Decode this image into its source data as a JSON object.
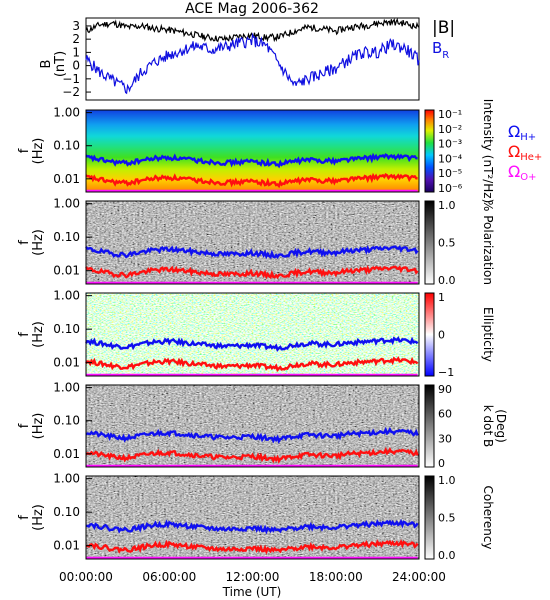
{
  "title": "ACE Mag 2006-362",
  "colors": {
    "B_total": "#000000",
    "B_R": "#1010e0",
    "H_plus": "#1010f0",
    "He_plus": "#ff1010",
    "O_plus": "#ff10ff"
  },
  "chart_data": [
    {
      "type": "line",
      "panel": "magnetic-field",
      "ylabel": [
        "B",
        "(nT)"
      ],
      "ylim": [
        -2.6,
        3.6
      ],
      "yticks": [
        -2,
        -1,
        0,
        1,
        2,
        3
      ],
      "ytick_labels": [
        "−2",
        "−1",
        "0",
        "1",
        "2",
        "3"
      ],
      "xlim_hours": [
        0,
        24
      ],
      "legend": [
        "|B|",
        "B_R"
      ],
      "series": [
        {
          "name": "|B|",
          "x_hours": [
            0,
            1,
            2,
            3,
            4,
            5,
            6,
            7,
            8,
            9,
            10,
            11,
            12,
            13,
            14,
            15,
            16,
            17,
            18,
            19,
            20,
            21,
            22,
            23,
            24
          ],
          "values": [
            2.6,
            3.1,
            3.2,
            2.9,
            3.0,
            2.8,
            2.7,
            2.5,
            2.3,
            2.1,
            2.0,
            2.2,
            2.3,
            2.1,
            2.2,
            2.6,
            2.9,
            2.8,
            2.6,
            2.9,
            3.0,
            3.2,
            3.3,
            3.2,
            2.9
          ]
        },
        {
          "name": "B_R",
          "x_hours": [
            0,
            1,
            2,
            3,
            4,
            5,
            6,
            7,
            8,
            9,
            10,
            11,
            12,
            13,
            14,
            15,
            16,
            17,
            18,
            19,
            20,
            21,
            22,
            23,
            24
          ],
          "values": [
            0.5,
            -0.5,
            -1.2,
            -1.8,
            -0.5,
            0.3,
            0.8,
            1.2,
            1.5,
            1.2,
            1.4,
            1.7,
            1.9,
            1.5,
            0.0,
            -1.5,
            -1.0,
            -0.6,
            -0.2,
            0.5,
            1.0,
            1.0,
            1.6,
            1.3,
            0.4
          ]
        }
      ]
    },
    {
      "type": "heatmap",
      "panel": "intensity",
      "ylabel": [
        "f",
        "(Hz)"
      ],
      "ylim_hz": [
        0.004,
        1.2
      ],
      "yscale": "log",
      "ytick_labels": [
        "1.00",
        "0.10",
        "0.01"
      ],
      "colorbar_label": "Intensity (nT²/Hz)",
      "colorbar_ticks": [
        "10⁻¹",
        "10⁻²",
        "10⁻³",
        "10⁻⁴",
        "10⁻⁵",
        "10⁻⁶"
      ],
      "colormap": "rainbow"
    },
    {
      "type": "heatmap",
      "panel": "polarization",
      "ylabel": [
        "f",
        "(Hz)"
      ],
      "ytick_labels": [
        "1.00",
        "0.10",
        "0.01"
      ],
      "colorbar_label": "% Polarization",
      "colorbar_ticks": [
        "1.0",
        "0.5",
        "0.0"
      ],
      "colormap": "gray"
    },
    {
      "type": "heatmap",
      "panel": "ellipticity",
      "ylabel": [
        "f",
        "(Hz)"
      ],
      "ytick_labels": [
        "1.00",
        "0.10",
        "0.01"
      ],
      "colorbar_label": "Ellipticity",
      "colorbar_ticks": [
        "1",
        "0",
        "−1"
      ],
      "colormap": "blue-white-red"
    },
    {
      "type": "heatmap",
      "panel": "wave-normal-angle",
      "ylabel": [
        "f",
        "(Hz)"
      ],
      "ytick_labels": [
        "1.00",
        "0.10",
        "0.01"
      ],
      "colorbar_label": [
        "k dot B",
        "(Deg)"
      ],
      "colorbar_ticks": [
        "90",
        "60",
        "30",
        "0"
      ],
      "colormap": "gray"
    },
    {
      "type": "heatmap",
      "panel": "coherency",
      "ylabel": [
        "f",
        "(Hz)"
      ],
      "ytick_labels": [
        "1.00",
        "0.10",
        "0.01"
      ],
      "colorbar_label": "Coherency",
      "colorbar_ticks": [
        "1.0",
        "0.5",
        "0.0"
      ],
      "colormap": "gray"
    }
  ],
  "gyrofrequency_legend": {
    "omega": "Ω",
    "H": "H+",
    "He": "He+",
    "O": "O+"
  },
  "gyrofrequencies_hz": {
    "x_hours": [
      0,
      1,
      2,
      3,
      4,
      5,
      6,
      7,
      8,
      9,
      10,
      11,
      12,
      13,
      14,
      15,
      16,
      17,
      18,
      19,
      20,
      21,
      22,
      23,
      24
    ],
    "H_plus": [
      0.045,
      0.038,
      0.032,
      0.03,
      0.036,
      0.042,
      0.044,
      0.04,
      0.036,
      0.033,
      0.031,
      0.032,
      0.034,
      0.03,
      0.028,
      0.034,
      0.038,
      0.036,
      0.035,
      0.04,
      0.042,
      0.045,
      0.048,
      0.046,
      0.04
    ]
  },
  "xaxis": {
    "label": "Time (UT)",
    "tick_labels": [
      "00:00:00",
      "06:00:00",
      "12:00:00",
      "18:00:00",
      "24:00:00"
    ]
  }
}
